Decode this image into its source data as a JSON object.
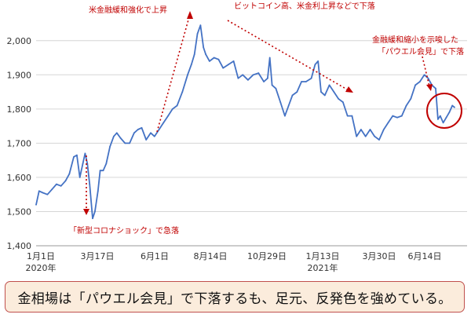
{
  "chart_data": {
    "type": "line",
    "title": "",
    "xlabel": "",
    "ylabel": "",
    "ylim": [
      1400,
      2050
    ],
    "yticks": [
      "1,400",
      "1,500",
      "1,600",
      "1,700",
      "1,800",
      "1,900",
      "2,000"
    ],
    "grid": "horizontal",
    "x_ticks": [
      {
        "label": "1月1日",
        "sub": "2020年"
      },
      {
        "label": "3月17日",
        "sub": ""
      },
      {
        "label": "6月1日",
        "sub": ""
      },
      {
        "label": "8月14日",
        "sub": ""
      },
      {
        "label": "10月29日",
        "sub": ""
      },
      {
        "label": "1月13日",
        "sub": "2021年"
      },
      {
        "label": "3月30日",
        "sub": ""
      },
      {
        "label": "6月14日",
        "sub": ""
      }
    ],
    "series": [
      {
        "color": "#4472c4",
        "x": [
          "2020-01-01",
          "2020-01-05",
          "2020-01-10",
          "2020-01-16",
          "2020-01-22",
          "2020-01-28",
          "2020-02-03",
          "2020-02-09",
          "2020-02-14",
          "2020-02-20",
          "2020-02-24",
          "2020-02-28",
          "2020-03-03",
          "2020-03-06",
          "2020-03-09",
          "2020-03-12",
          "2020-03-16",
          "2020-03-19",
          "2020-03-23",
          "2020-03-26",
          "2020-03-30",
          "2020-04-03",
          "2020-04-08",
          "2020-04-13",
          "2020-04-17",
          "2020-04-22",
          "2020-04-28",
          "2020-05-04",
          "2020-05-10",
          "2020-05-15",
          "2020-05-20",
          "2020-05-26",
          "2020-06-01",
          "2020-06-06",
          "2020-06-12",
          "2020-06-18",
          "2020-06-24",
          "2020-06-30",
          "2020-07-06",
          "2020-07-13",
          "2020-07-20",
          "2020-07-25",
          "2020-07-29",
          "2020-08-02",
          "2020-08-06",
          "2020-08-10",
          "2020-08-13",
          "2020-08-18",
          "2020-08-24",
          "2020-08-30",
          "2020-09-05",
          "2020-09-12",
          "2020-09-19",
          "2020-09-25",
          "2020-10-01",
          "2020-10-08",
          "2020-10-15",
          "2020-10-22",
          "2020-10-29",
          "2020-11-03",
          "2020-11-06",
          "2020-11-09",
          "2020-11-14",
          "2020-11-20",
          "2020-11-26",
          "2020-12-01",
          "2020-12-06",
          "2020-12-12",
          "2020-12-18",
          "2020-12-24",
          "2020-12-31",
          "2021-01-05",
          "2021-01-09",
          "2021-01-13",
          "2021-01-18",
          "2021-01-24",
          "2021-01-30",
          "2021-02-05",
          "2021-02-11",
          "2021-02-17",
          "2021-02-23",
          "2021-03-01",
          "2021-03-07",
          "2021-03-13",
          "2021-03-19",
          "2021-03-25",
          "2021-03-31",
          "2021-04-06",
          "2021-04-12",
          "2021-04-18",
          "2021-04-24",
          "2021-04-30",
          "2021-05-06",
          "2021-05-12",
          "2021-05-18",
          "2021-05-24",
          "2021-05-30",
          "2021-06-04",
          "2021-06-09",
          "2021-06-14",
          "2021-06-17",
          "2021-06-20",
          "2021-06-24",
          "2021-06-28",
          "2021-07-02",
          "2021-07-06",
          "2021-07-09"
        ],
        "values": [
          1520,
          1560,
          1555,
          1550,
          1565,
          1580,
          1575,
          1590,
          1610,
          1660,
          1665,
          1600,
          1640,
          1670,
          1640,
          1580,
          1480,
          1500,
          1560,
          1620,
          1620,
          1640,
          1690,
          1720,
          1730,
          1715,
          1700,
          1700,
          1730,
          1740,
          1745,
          1710,
          1730,
          1720,
          1740,
          1760,
          1780,
          1800,
          1810,
          1850,
          1900,
          1930,
          1960,
          2020,
          2045,
          1980,
          1960,
          1940,
          1950,
          1945,
          1920,
          1930,
          1940,
          1890,
          1900,
          1885,
          1900,
          1905,
          1880,
          1890,
          1950,
          1870,
          1860,
          1820,
          1780,
          1810,
          1840,
          1850,
          1880,
          1880,
          1890,
          1930,
          1940,
          1850,
          1840,
          1870,
          1850,
          1830,
          1820,
          1780,
          1780,
          1720,
          1740,
          1720,
          1740,
          1720,
          1710,
          1740,
          1760,
          1780,
          1775,
          1780,
          1810,
          1830,
          1870,
          1880,
          1900,
          1890,
          1870,
          1860,
          1770,
          1780,
          1760,
          1775,
          1790,
          1810,
          1805
        ]
      }
    ],
    "annotations": [
      {
        "text": "米金融緩和強化で上昇"
      },
      {
        "text": "ビットコイン高、米金利上昇などで下落"
      },
      {
        "text": "「新型コロナショック」で急落"
      },
      {
        "text": "金融緩和縮小を示唆した"
      },
      {
        "text": "「パウエル会見」で下落"
      }
    ]
  },
  "caption": "金相場は「パウエル会見」で下落するも、足元、反発色を強めている。",
  "colors": {
    "line": "#4472c4",
    "annotation": "#c00000",
    "caption_bg": "#fbecdc",
    "caption_border": "#c0504d"
  }
}
